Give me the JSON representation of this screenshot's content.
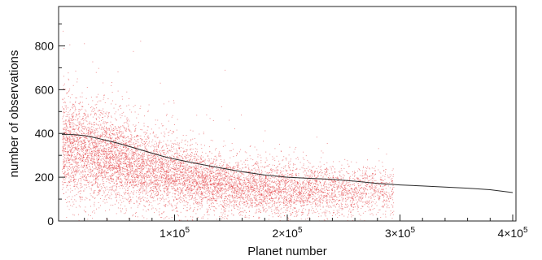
{
  "chart_data": {
    "type": "scatter",
    "title": "",
    "xlabel": "Planet number",
    "ylabel": "number of  observations",
    "xlim": [
      0,
      400000
    ],
    "ylim": [
      0,
      980
    ],
    "x_ticks": [
      {
        "value": 100000,
        "base": "1×10",
        "exp": "5"
      },
      {
        "value": 200000,
        "base": "2×10",
        "exp": "5"
      },
      {
        "value": 300000,
        "base": "3×10",
        "exp": "5"
      },
      {
        "value": 400000,
        "base": "4×10",
        "exp": "5"
      }
    ],
    "y_ticks": [
      {
        "value": 0,
        "label": "0"
      },
      {
        "value": 200,
        "label": "200"
      },
      {
        "value": 400,
        "label": "400"
      },
      {
        "value": 600,
        "label": "600"
      },
      {
        "value": 800,
        "label": "800"
      }
    ],
    "grid": false,
    "legend": "none",
    "colors": {
      "points": "#e2383d",
      "trend": "#2a2a2a"
    },
    "series": [
      {
        "kind": "smoothed-mean",
        "x": [
          0,
          10000,
          20000,
          30000,
          40000,
          50000,
          60000,
          70000,
          80000,
          90000,
          100000,
          120000,
          140000,
          160000,
          180000,
          200000,
          220000,
          240000,
          260000,
          280000,
          300000,
          320000,
          340000,
          360000,
          380000,
          400000
        ],
        "y": [
          395,
          395,
          390,
          380,
          368,
          355,
          340,
          325,
          310,
          295,
          283,
          262,
          243,
          225,
          210,
          200,
          195,
          190,
          182,
          172,
          165,
          160,
          155,
          150,
          143,
          130
        ]
      },
      {
        "kind": "points-density",
        "x": [
          0,
          25000,
          50000,
          75000,
          100000,
          125000,
          150000,
          175000,
          200000,
          250000,
          300000,
          350000,
          400000
        ],
        "center_y": [
          350,
          320,
          280,
          240,
          210,
          180,
          160,
          150,
          145,
          140,
          135,
          130,
          125
        ],
        "spread_y": [
          120,
          110,
          100,
          90,
          80,
          70,
          65,
          60,
          60,
          55,
          55,
          50,
          50
        ]
      }
    ]
  }
}
